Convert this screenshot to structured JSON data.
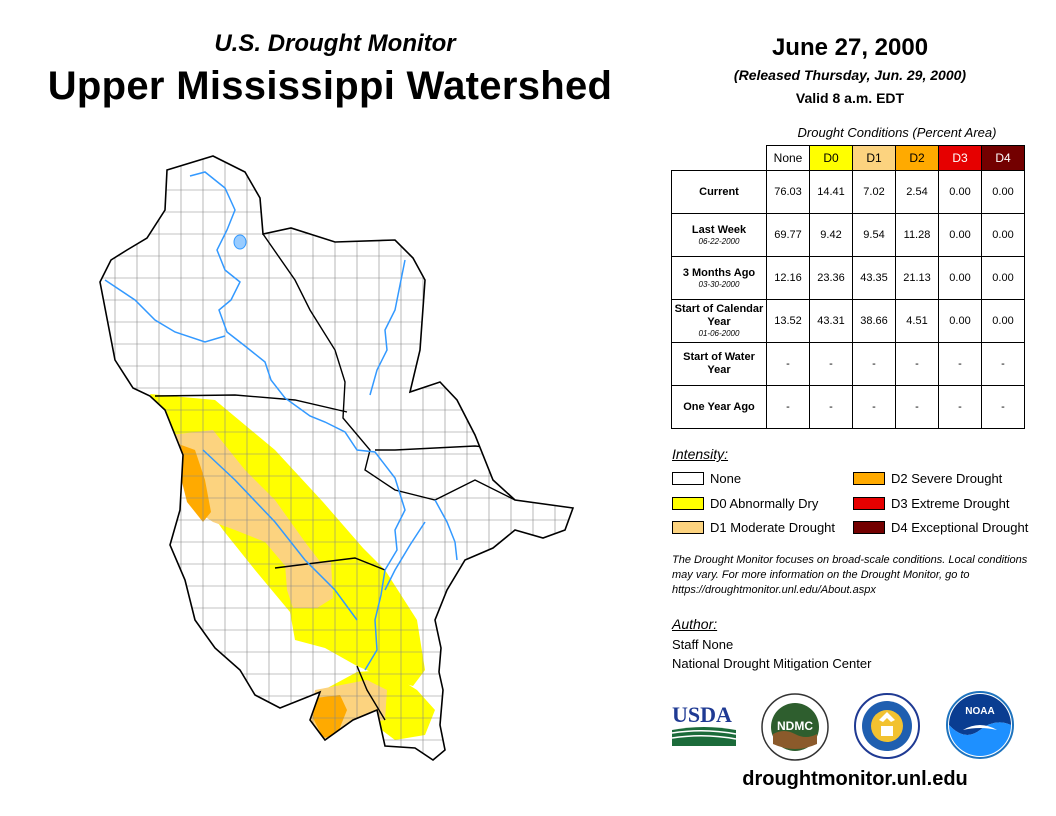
{
  "header": {
    "subtitle": "U.S. Drought Monitor",
    "title": "Upper Mississippi Watershed",
    "date": "June 27, 2000",
    "released": "(Released Thursday, Jun. 29, 2000)",
    "valid": "Valid 8 a.m. EDT"
  },
  "table": {
    "caption": "Drought Conditions (Percent Area)",
    "columns": [
      {
        "label": "None",
        "color": "#ffffff",
        "text_color": "#000000"
      },
      {
        "label": "D0",
        "color": "#ffff00",
        "text_color": "#000000"
      },
      {
        "label": "D1",
        "color": "#fcd37f",
        "text_color": "#000000"
      },
      {
        "label": "D2",
        "color": "#ffaa00",
        "text_color": "#000000"
      },
      {
        "label": "D3",
        "color": "#e60000",
        "text_color": "#ffffff"
      },
      {
        "label": "D4",
        "color": "#730000",
        "text_color": "#ffffff"
      }
    ],
    "rows": [
      {
        "label": "Current",
        "date": "",
        "values": [
          "76.03",
          "14.41",
          "7.02",
          "2.54",
          "0.00",
          "0.00"
        ]
      },
      {
        "label": "Last Week",
        "date": "06-22-2000",
        "values": [
          "69.77",
          "9.42",
          "9.54",
          "11.28",
          "0.00",
          "0.00"
        ]
      },
      {
        "label": "3 Months Ago",
        "date": "03-30-2000",
        "values": [
          "12.16",
          "23.36",
          "43.35",
          "21.13",
          "0.00",
          "0.00"
        ]
      },
      {
        "label": "Start of Calendar Year",
        "date": "01-06-2000",
        "values": [
          "13.52",
          "43.31",
          "38.66",
          "4.51",
          "0.00",
          "0.00"
        ]
      },
      {
        "label": "Start of Water Year",
        "date": "",
        "values": [
          "-",
          "-",
          "-",
          "-",
          "-",
          "-"
        ]
      },
      {
        "label": "One Year Ago",
        "date": "",
        "values": [
          "-",
          "-",
          "-",
          "-",
          "-",
          "-"
        ]
      }
    ]
  },
  "legend": {
    "title": "Intensity:",
    "items": [
      {
        "label": "None",
        "color": "#ffffff"
      },
      {
        "label": "D0 Abnormally Dry",
        "color": "#ffff00"
      },
      {
        "label": "D1 Moderate Drought",
        "color": "#fcd37f"
      },
      {
        "label": "D2 Severe Drought",
        "color": "#ffaa00"
      },
      {
        "label": "D3 Extreme Drought",
        "color": "#e60000"
      },
      {
        "label": "D4 Exceptional Drought",
        "color": "#730000"
      }
    ]
  },
  "note": "The Drought Monitor focuses on broad-scale conditions. Local conditions may vary. For more information on the Drought Monitor, go to https://droughtmonitor.unl.edu/About.aspx",
  "author": {
    "title": "Author:",
    "name": "Staff None",
    "org": "National Drought Mitigation Center"
  },
  "logos": {
    "usda": "USDA",
    "ndmc": "NDMC",
    "noaa": "NOAA"
  },
  "website": "droughtmonitor.unl.edu",
  "colors": {
    "river": "#3399ff",
    "county_line": "#888888",
    "state_line": "#000000"
  }
}
